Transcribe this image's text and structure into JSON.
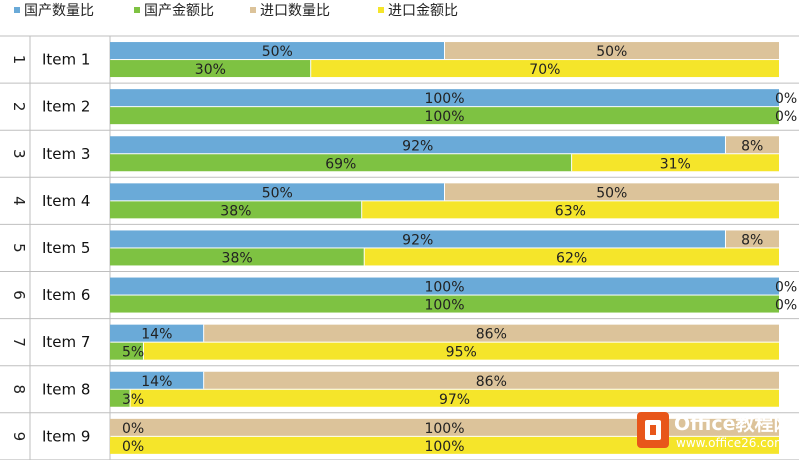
{
  "chart_data": {
    "type": "bar",
    "stacked_percent": true,
    "legend_position": "top-left",
    "series_colors": {
      "domestic_quantity": "#6aaad8",
      "import_quantity": "#dcc39a",
      "domestic_amount": "#7ec242",
      "import_amount": "#f5e52a"
    },
    "legend": [
      {
        "key": "domestic_quantity",
        "label": "国产数量比",
        "color": "#6aaad8"
      },
      {
        "key": "domestic_amount",
        "label": "国产金额比",
        "color": "#7ec242"
      },
      {
        "key": "import_quantity",
        "label": "进口数量比",
        "color": "#dcc39a"
      },
      {
        "key": "import_amount",
        "label": "进口金额比",
        "color": "#f5e52a"
      }
    ],
    "rows": [
      {
        "num": "1",
        "label": "Item 1",
        "qty": [
          50,
          50
        ],
        "amt": [
          30,
          70
        ]
      },
      {
        "num": "2",
        "label": "Item 2",
        "qty": [
          100,
          0
        ],
        "amt": [
          100,
          0
        ]
      },
      {
        "num": "3",
        "label": "Item 3",
        "qty": [
          92,
          8
        ],
        "amt": [
          69,
          31
        ]
      },
      {
        "num": "4",
        "label": "Item 4",
        "qty": [
          50,
          50
        ],
        "amt": [
          38,
          63
        ]
      },
      {
        "num": "5",
        "label": "Item 5",
        "qty": [
          92,
          8
        ],
        "amt": [
          38,
          62
        ]
      },
      {
        "num": "6",
        "label": "Item 6",
        "qty": [
          100,
          0
        ],
        "amt": [
          100,
          0
        ]
      },
      {
        "num": "7",
        "label": "Item 7",
        "qty": [
          14,
          86
        ],
        "amt": [
          5,
          95
        ]
      },
      {
        "num": "8",
        "label": "Item 8",
        "qty": [
          14,
          86
        ],
        "amt": [
          3,
          97
        ]
      },
      {
        "num": "9",
        "label": "Item 9",
        "qty": [
          0,
          100
        ],
        "amt": [
          0,
          100
        ]
      }
    ]
  },
  "watermark": {
    "brand": "Office教程网",
    "url": "www.office26.com",
    "logo_color": "#e8561a"
  }
}
